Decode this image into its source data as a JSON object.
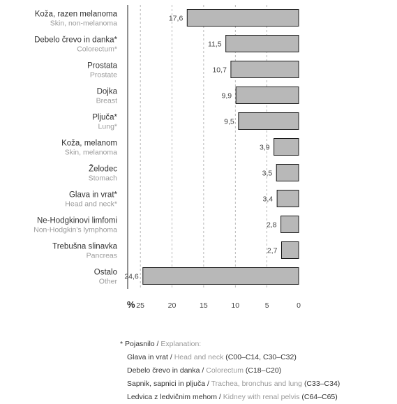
{
  "chart_data": {
    "type": "bar",
    "orientation": "horizontal",
    "x_direction": "reversed",
    "xlim": [
      0,
      27
    ],
    "xticks": [
      25,
      20,
      15,
      10,
      5,
      0
    ],
    "axis_unit": "%",
    "grid": true,
    "categories": [
      {
        "sl": "Koža, razen melanoma",
        "en": "Skin, non-melanoma",
        "value": 17.6,
        "label": "17,6"
      },
      {
        "sl": "Debelo črevo in danka*",
        "en": "Colorectum*",
        "value": 11.5,
        "label": "11,5"
      },
      {
        "sl": "Prostata",
        "en": "Prostate",
        "value": 10.7,
        "label": "10,7"
      },
      {
        "sl": "Dojka",
        "en": "Breast",
        "value": 9.9,
        "label": "9,9"
      },
      {
        "sl": "Pljuča*",
        "en": "Lung*",
        "value": 9.5,
        "label": "9,5"
      },
      {
        "sl": "Koža, melanom",
        "en": "Skin, melanoma",
        "value": 3.9,
        "label": "3,9"
      },
      {
        "sl": "Želodec",
        "en": "Stomach",
        "value": 3.5,
        "label": "3,5"
      },
      {
        "sl": "Glava in vrat*",
        "en": "Head and neck*",
        "value": 3.4,
        "label": "3,4"
      },
      {
        "sl": "Ne-Hodgkinovi limfomi",
        "en": "Non-Hodgkin's lymphoma",
        "value": 2.8,
        "label": "2,8"
      },
      {
        "sl": "Trebušna slinavka",
        "en": "Pancreas",
        "value": 2.7,
        "label": "2,7"
      },
      {
        "sl": "Ostalo",
        "en": "Other",
        "value": 24.6,
        "label": "24,6"
      }
    ],
    "colors": {
      "bar": "#b8b8b8",
      "bar_stroke": "#1a1a1a",
      "grid": "#9a9a9a"
    }
  },
  "notes": {
    "heading_sl": "Pojasnilo",
    "heading_sep": " / ",
    "heading_en": "Explanation:",
    "items": [
      {
        "sl": "Glava in vrat",
        "en": "Head and neck",
        "code": "(C00–C14, C30–C32)"
      },
      {
        "sl": "Debelo črevo in danka",
        "en": "Colorectum",
        "code": "(C18–C20)"
      },
      {
        "sl": "Sapnik, sapnici in pljuča",
        "en": "Trachea, bronchus and lung",
        "code": "(C33–C34)"
      },
      {
        "sl": "Ledvica z ledvičnim mehom",
        "en": "Kidney with renal pelvis",
        "code": "(C64–C65)"
      }
    ]
  }
}
